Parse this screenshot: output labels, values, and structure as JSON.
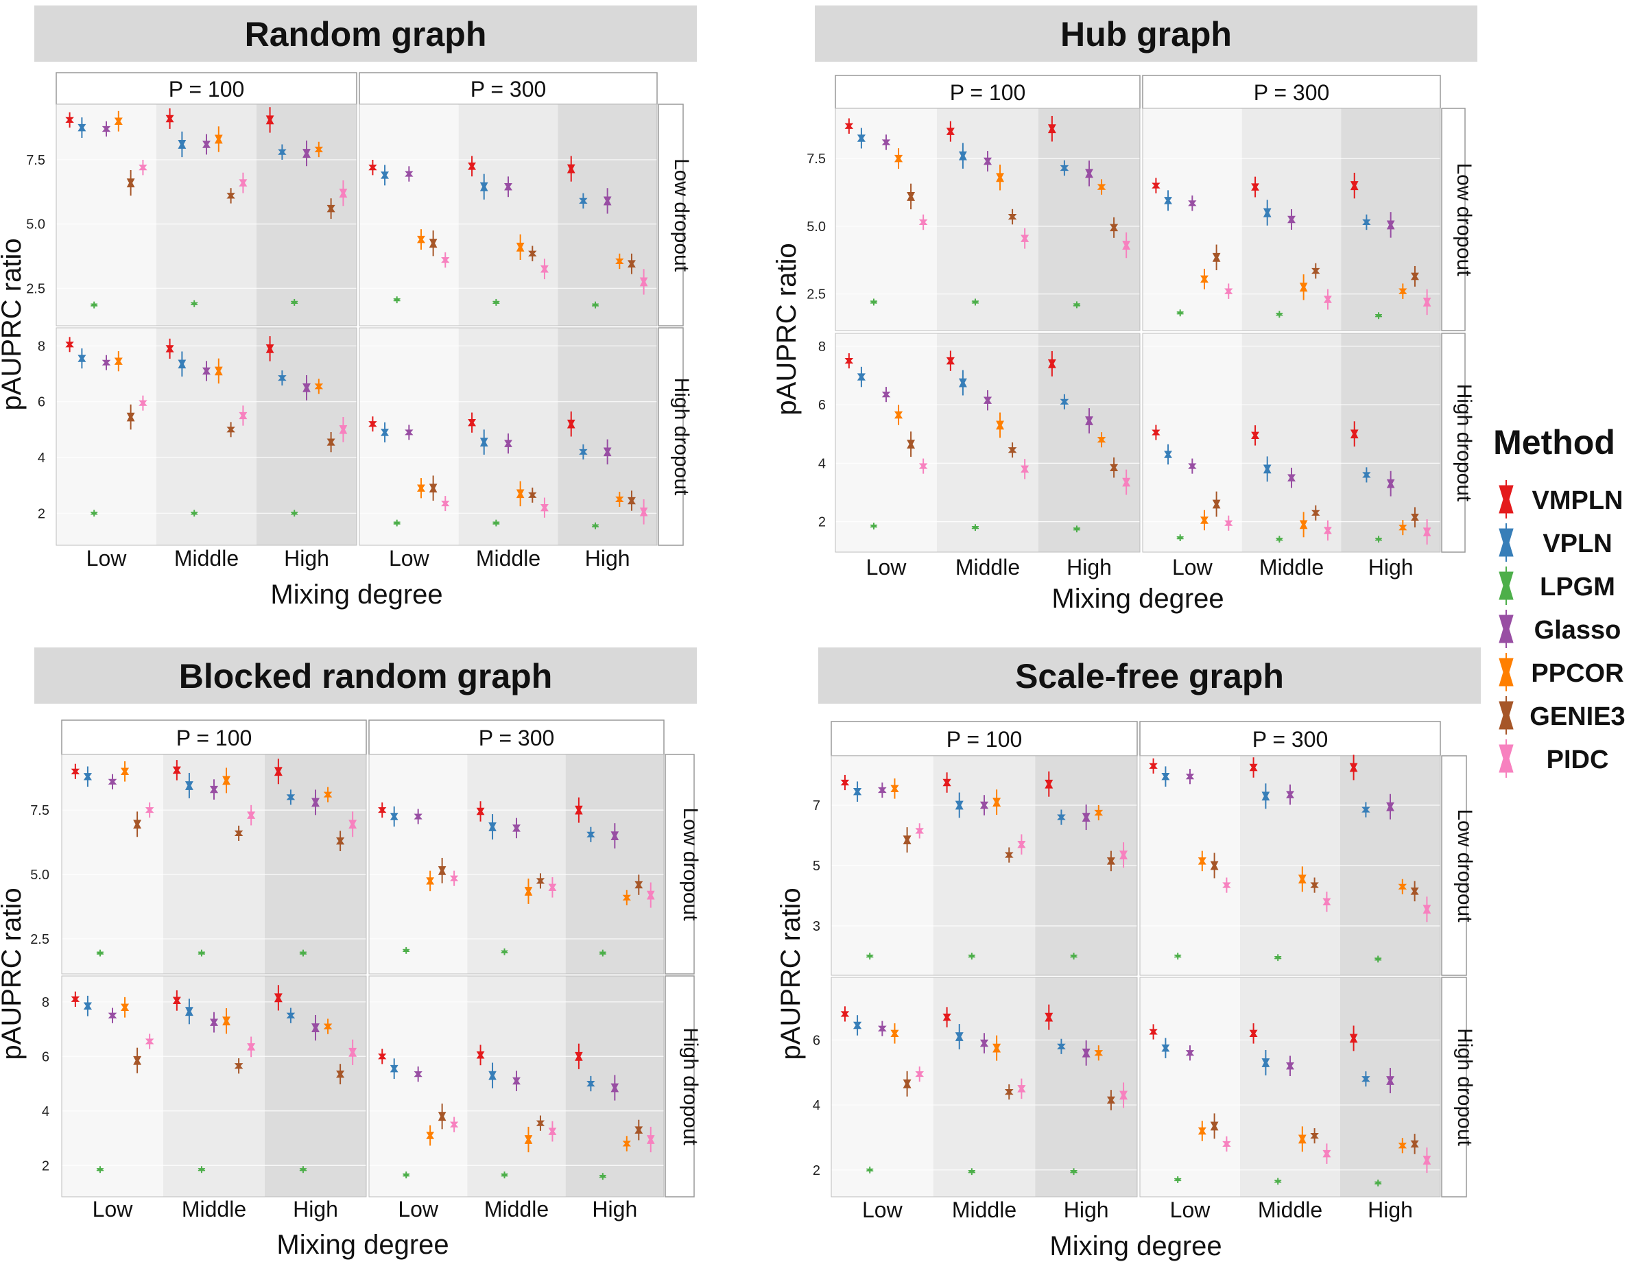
{
  "figure": {
    "ylabel": "pAUPRC ratio",
    "xlabel": "Mixing degree",
    "x_groups": [
      "Low",
      "Middle",
      "High"
    ],
    "legend_title": "Method"
  },
  "methods": [
    "VMPLN",
    "VPLN",
    "LPGM",
    "Glasso",
    "PPCOR",
    "GENIE3",
    "PIDC"
  ],
  "colors": {
    "VMPLN": "#e41a1c",
    "VPLN": "#377eb8",
    "LPGM": "#4daf4a",
    "Glasso": "#984ea3",
    "PPCOR": "#ff7f00",
    "GENIE3": "#a65628",
    "PIDC": "#f781bf"
  },
  "chart_data": [
    {
      "type": "boxplot",
      "title": "Random graph",
      "xlabel": "Mixing degree",
      "ylabel": "pAUPRC ratio",
      "categories": [
        "Low",
        "Middle",
        "High"
      ],
      "facet_cols": [
        "P = 100",
        "P = 300"
      ],
      "facet_rows": [
        {
          "label": "Low dropout",
          "ylim": [
            1.2,
            9.5
          ],
          "ticks": [
            2.5,
            5.0,
            7.5
          ],
          "tick_labels": [
            "2.5",
            "5.0",
            "7.5"
          ],
          "values": [
            [
              [
                9.05,
                8.75,
                1.85,
                8.7,
                9.0,
                6.6,
                7.2
              ],
              [
                9.1,
                8.1,
                1.9,
                8.1,
                8.3,
                6.1,
                6.6
              ],
              [
                9.05,
                7.8,
                1.95,
                7.75,
                7.9,
                5.6,
                6.2
              ]
            ],
            [
              [
                7.2,
                6.9,
                2.05,
                6.95,
                4.4,
                4.25,
                3.6
              ],
              [
                7.25,
                6.45,
                1.95,
                6.45,
                4.1,
                3.85,
                3.25
              ],
              [
                7.15,
                5.9,
                1.85,
                5.9,
                3.55,
                3.45,
                2.75
              ]
            ]
          ]
        },
        {
          "label": "High dropout",
          "ylim": [
            1.0,
            8.5
          ],
          "ticks": [
            2,
            4,
            6,
            8
          ],
          "tick_labels": [
            "2",
            "4",
            "6",
            "8"
          ],
          "values": [
            [
              [
                8.05,
                7.55,
                2.0,
                7.4,
                7.45,
                5.45,
                5.95
              ],
              [
                7.9,
                7.35,
                2.0,
                7.1,
                7.1,
                5.0,
                5.5
              ],
              [
                7.9,
                6.85,
                2.0,
                6.5,
                6.55,
                4.55,
                5.0
              ]
            ],
            [
              [
                5.2,
                4.9,
                1.65,
                4.9,
                2.9,
                2.9,
                2.35
              ],
              [
                5.25,
                4.55,
                1.65,
                4.5,
                2.7,
                2.65,
                2.2
              ],
              [
                5.2,
                4.2,
                1.55,
                4.2,
                2.5,
                2.45,
                2.05
              ]
            ]
          ]
        }
      ]
    },
    {
      "type": "boxplot",
      "title": "Hub graph",
      "xlabel": "Mixing degree",
      "ylabel": "pAUPRC ratio",
      "categories": [
        "Low",
        "Middle",
        "High"
      ],
      "facet_cols": [
        "P = 100",
        "P = 300"
      ],
      "facet_rows": [
        {
          "label": "Low dropout",
          "ylim": [
            1.3,
            9.2
          ],
          "ticks": [
            2.5,
            5.0,
            7.5
          ],
          "tick_labels": [
            "2.5",
            "5.0",
            "7.5"
          ],
          "values": [
            [
              [
                8.7,
                8.25,
                2.2,
                8.1,
                7.5,
                6.1,
                5.15
              ],
              [
                8.5,
                7.6,
                2.2,
                7.4,
                6.8,
                5.35,
                4.55
              ],
              [
                8.6,
                7.15,
                2.1,
                6.95,
                6.45,
                4.95,
                4.3
              ]
            ],
            [
              [
                6.5,
                5.95,
                1.8,
                5.85,
                3.05,
                3.85,
                2.6
              ],
              [
                6.45,
                5.5,
                1.75,
                5.25,
                2.75,
                3.35,
                2.3
              ],
              [
                6.5,
                5.15,
                1.7,
                5.05,
                2.6,
                3.15,
                2.2
              ]
            ]
          ]
        },
        {
          "label": "High dropout",
          "ylim": [
            1.1,
            8.3
          ],
          "ticks": [
            2,
            4,
            6,
            8
          ],
          "tick_labels": [
            "2",
            "4",
            "6",
            "8"
          ],
          "values": [
            [
              [
                7.5,
                6.95,
                1.85,
                6.35,
                5.65,
                4.65,
                3.9
              ],
              [
                7.5,
                6.75,
                1.8,
                6.15,
                5.3,
                4.45,
                3.8
              ],
              [
                7.4,
                6.1,
                1.75,
                5.45,
                4.8,
                3.85,
                3.35
              ]
            ],
            [
              [
                5.05,
                4.3,
                1.45,
                3.9,
                2.05,
                2.6,
                1.95
              ],
              [
                4.95,
                3.8,
                1.4,
                3.5,
                1.9,
                2.3,
                1.7
              ],
              [
                5.0,
                3.6,
                1.4,
                3.3,
                1.8,
                2.15,
                1.65
              ]
            ]
          ]
        }
      ]
    },
    {
      "type": "boxplot",
      "title": "Blocked random graph",
      "xlabel": "Mixing degree",
      "ylabel": "pAUPRC ratio",
      "categories": [
        "Low",
        "Middle",
        "High"
      ],
      "facet_cols": [
        "P = 100",
        "P = 300"
      ],
      "facet_rows": [
        {
          "label": "Low dropout",
          "ylim": [
            1.3,
            9.5
          ],
          "ticks": [
            2.5,
            5.0,
            7.5
          ],
          "tick_labels": [
            "2.5",
            "5.0",
            "7.5"
          ],
          "values": [
            [
              [
                9.0,
                8.8,
                1.95,
                8.6,
                9.0,
                6.95,
                7.5
              ],
              [
                9.05,
                8.45,
                1.95,
                8.3,
                8.65,
                6.6,
                7.3
              ],
              [
                9.0,
                8.0,
                1.95,
                7.8,
                8.1,
                6.3,
                6.95
              ]
            ],
            [
              [
                7.5,
                7.25,
                2.05,
                7.25,
                4.75,
                5.15,
                4.85
              ],
              [
                7.45,
                6.85,
                2.0,
                6.8,
                4.35,
                4.75,
                4.5
              ],
              [
                7.5,
                6.55,
                1.95,
                6.5,
                4.1,
                4.6,
                4.2
              ]
            ]
          ]
        },
        {
          "label": "High dropout",
          "ylim": [
            1.0,
            8.8
          ],
          "ticks": [
            2,
            4,
            6,
            8
          ],
          "tick_labels": [
            "2",
            "4",
            "6",
            "8"
          ],
          "values": [
            [
              [
                8.1,
                7.85,
                1.85,
                7.5,
                7.8,
                5.85,
                6.55
              ],
              [
                8.05,
                7.65,
                1.85,
                7.25,
                7.3,
                5.65,
                6.35
              ],
              [
                8.15,
                7.5,
                1.85,
                7.05,
                7.1,
                5.35,
                6.15
              ]
            ],
            [
              [
                6.0,
                5.55,
                1.65,
                5.35,
                3.1,
                3.8,
                3.5
              ],
              [
                6.05,
                5.3,
                1.65,
                5.1,
                2.95,
                3.55,
                3.25
              ],
              [
                6.0,
                5.0,
                1.6,
                4.85,
                2.8,
                3.3,
                2.95
              ]
            ]
          ]
        }
      ]
    },
    {
      "type": "boxplot",
      "title": "Scale-free graph",
      "xlabel": "Mixing degree",
      "ylabel": "pAUPRC ratio",
      "categories": [
        "Low",
        "Middle",
        "High"
      ],
      "facet_cols": [
        "P = 100",
        "P = 300"
      ],
      "facet_rows": [
        {
          "label": "Low dropout",
          "ylim": [
            1.5,
            8.5
          ],
          "ticks": [
            3,
            5,
            7
          ],
          "tick_labels": [
            "3",
            "5",
            "7"
          ],
          "values": [
            [
              [
                7.75,
                7.45,
                2.0,
                7.5,
                7.55,
                5.85,
                6.15
              ],
              [
                7.75,
                7.0,
                2.0,
                7.0,
                7.1,
                5.35,
                5.7
              ],
              [
                7.7,
                6.6,
                2.0,
                6.6,
                6.75,
                5.15,
                5.35
              ]
            ],
            [
              [
                8.3,
                7.95,
                2.0,
                7.95,
                5.15,
                5.0,
                4.35
              ],
              [
                8.25,
                7.3,
                1.95,
                7.35,
                4.55,
                4.35,
                3.8
              ],
              [
                8.25,
                6.85,
                1.9,
                6.95,
                4.3,
                4.15,
                3.55
              ]
            ]
          ]
        },
        {
          "label": "High dropout",
          "ylim": [
            1.3,
            7.8
          ],
          "ticks": [
            2,
            4,
            6
          ],
          "tick_labels": [
            "2",
            "4",
            "6"
          ],
          "values": [
            [
              [
                6.8,
                6.45,
                2.0,
                6.35,
                6.2,
                4.65,
                4.95
              ],
              [
                6.7,
                6.1,
                1.95,
                5.9,
                5.75,
                4.4,
                4.5
              ],
              [
                6.7,
                5.8,
                1.95,
                5.6,
                5.6,
                4.15,
                4.3
              ]
            ],
            [
              [
                6.25,
                5.75,
                1.7,
                5.6,
                3.2,
                3.35,
                2.8
              ],
              [
                6.2,
                5.3,
                1.65,
                5.2,
                2.95,
                3.05,
                2.5
              ],
              [
                6.05,
                4.8,
                1.6,
                4.75,
                2.75,
                2.8,
                2.3
              ]
            ]
          ]
        }
      ]
    }
  ]
}
